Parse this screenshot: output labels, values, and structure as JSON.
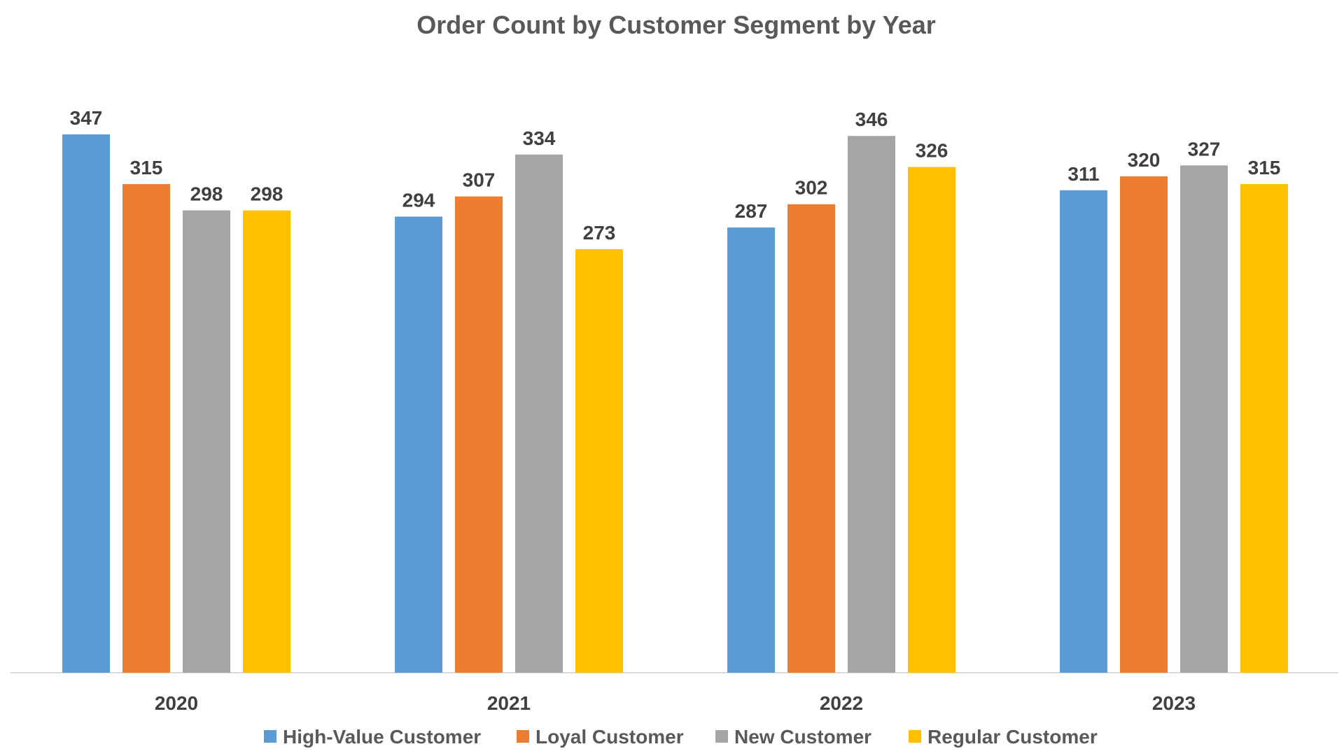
{
  "chart_data": {
    "type": "bar",
    "title": "Order Count by Customer Segment by Year",
    "xlabel": "",
    "ylabel": "",
    "categories": [
      "2020",
      "2021",
      "2022",
      "2023"
    ],
    "series": [
      {
        "name": "High-Value Customer",
        "color": "#5B9BD5",
        "values": [
          347,
          294,
          287,
          311
        ]
      },
      {
        "name": "Loyal Customer",
        "color": "#ED7D31",
        "values": [
          315,
          307,
          302,
          320
        ]
      },
      {
        "name": "New Customer",
        "color": "#A5A5A5",
        "values": [
          298,
          334,
          346,
          327
        ]
      },
      {
        "name": "Regular Customer",
        "color": "#FFC000",
        "values": [
          298,
          273,
          326,
          315
        ]
      }
    ],
    "ylim": [
      0,
      347
    ],
    "grid": false,
    "legend": "bottom",
    "data_labels": true
  }
}
